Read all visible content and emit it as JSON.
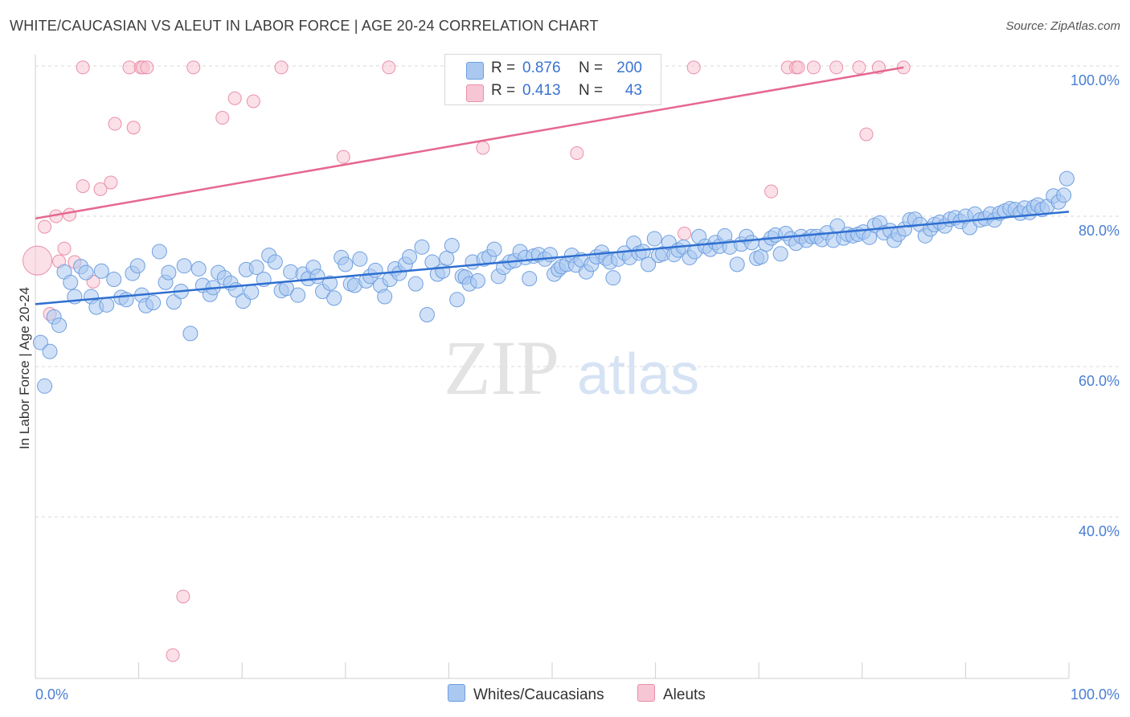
{
  "header": {
    "title": "WHITE/CAUCASIAN VS ALEUT IN LABOR FORCE | AGE 20-24 CORRELATION CHART",
    "source": "Source: ZipAtlas.com"
  },
  "legend": {
    "rows": [
      {
        "r_label": "R =",
        "r_value": "0.876",
        "n_label": "N =",
        "n_value": "200"
      },
      {
        "r_label": "R =",
        "r_value": "0.413",
        "n_label": "N =",
        "n_value": "43"
      }
    ]
  },
  "bottom_legend": {
    "series1": "Whites/Caucasians",
    "series2": "Aleuts"
  },
  "colors": {
    "blue_fill": "#aac8f0",
    "blue_stroke": "#6f9fe0",
    "blue_line": "#2f6fd0",
    "pink_fill": "#f7c6d4",
    "pink_stroke": "#ea8fab",
    "pink_line": "#e56890",
    "tick_text": "#4a7fd4",
    "grid": "#d8d8d8"
  },
  "chart_data": {
    "type": "scatter",
    "title": "WHITE/CAUCASIAN VS ALEUT IN LABOR FORCE | AGE 20-24 CORRELATION CHART",
    "xlabel": "",
    "ylabel": "In Labor Force | Age 20-24",
    "xlim": [
      0,
      100
    ],
    "ylim": [
      18.5,
      101.5
    ],
    "x_tick_labels": [
      "0.0%",
      "100.0%"
    ],
    "y_ticks": [
      {
        "value": 40,
        "label": "40.0%"
      },
      {
        "value": 60,
        "label": "60.0%"
      },
      {
        "value": 80,
        "label": "80.0%"
      },
      {
        "value": 100,
        "label": "100.0%"
      }
    ],
    "grid": "horizontal dashed",
    "watermark": "ZIPatlas",
    "series": [
      {
        "name": "Whites/Caucasians",
        "color": "#6f9fe0",
        "r": 0.876,
        "n": 200,
        "trend": {
          "x": [
            0,
            100
          ],
          "y": [
            68.3,
            80.6
          ]
        },
        "points": [
          [
            0.5,
            63.2
          ],
          [
            0.9,
            57.4
          ],
          [
            1.4,
            62.0
          ],
          [
            1.8,
            66.6
          ],
          [
            2.3,
            65.5
          ],
          [
            2.8,
            72.6
          ],
          [
            3.4,
            71.2
          ],
          [
            3.8,
            69.3
          ],
          [
            4.4,
            73.3
          ],
          [
            4.9,
            72.5
          ],
          [
            5.4,
            69.3
          ],
          [
            5.9,
            67.9
          ],
          [
            6.4,
            72.7
          ],
          [
            6.9,
            68.2
          ],
          [
            7.6,
            71.6
          ],
          [
            8.3,
            69.2
          ],
          [
            8.8,
            68.9
          ],
          [
            9.4,
            72.4
          ],
          [
            9.9,
            73.4
          ],
          [
            10.3,
            69.5
          ],
          [
            10.7,
            68.1
          ],
          [
            11.4,
            68.5
          ],
          [
            12.0,
            75.3
          ],
          [
            12.6,
            71.2
          ],
          [
            12.9,
            72.5
          ],
          [
            13.4,
            68.6
          ],
          [
            14.1,
            70.0
          ],
          [
            14.4,
            73.4
          ],
          [
            15.0,
            64.4
          ],
          [
            15.8,
            73.0
          ],
          [
            16.2,
            70.8
          ],
          [
            16.9,
            69.6
          ],
          [
            17.2,
            70.5
          ],
          [
            17.7,
            72.5
          ],
          [
            18.3,
            71.8
          ],
          [
            18.9,
            71.1
          ],
          [
            19.4,
            70.2
          ],
          [
            20.1,
            68.7
          ],
          [
            20.4,
            72.9
          ],
          [
            20.9,
            69.9
          ],
          [
            21.4,
            73.2
          ],
          [
            22.1,
            71.6
          ],
          [
            22.6,
            74.8
          ],
          [
            23.2,
            73.9
          ],
          [
            23.8,
            70.1
          ],
          [
            24.3,
            70.4
          ],
          [
            24.7,
            72.6
          ],
          [
            25.4,
            69.5
          ],
          [
            25.9,
            72.3
          ],
          [
            26.4,
            71.7
          ],
          [
            26.9,
            73.2
          ],
          [
            27.3,
            72.0
          ],
          [
            27.8,
            70.0
          ],
          [
            28.5,
            71.1
          ],
          [
            28.9,
            69.1
          ],
          [
            29.6,
            74.5
          ],
          [
            30.0,
            73.6
          ],
          [
            30.5,
            71.0
          ],
          [
            30.9,
            70.8
          ],
          [
            31.4,
            74.3
          ],
          [
            32.0,
            71.4
          ],
          [
            32.4,
            72.0
          ],
          [
            32.9,
            72.8
          ],
          [
            33.4,
            70.8
          ],
          [
            33.8,
            69.3
          ],
          [
            34.3,
            71.6
          ],
          [
            34.8,
            73.0
          ],
          [
            35.2,
            72.4
          ],
          [
            35.8,
            73.6
          ],
          [
            36.2,
            74.6
          ],
          [
            36.8,
            71.0
          ],
          [
            37.4,
            75.9
          ],
          [
            37.9,
            66.9
          ],
          [
            38.4,
            73.9
          ],
          [
            38.9,
            72.3
          ],
          [
            39.4,
            72.7
          ],
          [
            39.8,
            74.4
          ],
          [
            40.3,
            76.1
          ],
          [
            40.8,
            68.9
          ],
          [
            41.3,
            72.0
          ],
          [
            41.6,
            71.9
          ],
          [
            42.0,
            71.0
          ],
          [
            42.3,
            73.9
          ],
          [
            42.8,
            71.4
          ],
          [
            43.4,
            74.3
          ],
          [
            43.9,
            74.6
          ],
          [
            44.4,
            75.6
          ],
          [
            44.8,
            72.0
          ],
          [
            45.3,
            73.2
          ],
          [
            45.9,
            73.9
          ],
          [
            46.4,
            74.1
          ],
          [
            46.9,
            75.3
          ],
          [
            47.4,
            74.5
          ],
          [
            47.8,
            71.7
          ],
          [
            48.2,
            74.7
          ],
          [
            48.7,
            74.9
          ],
          [
            49.3,
            74.3
          ],
          [
            49.8,
            74.9
          ],
          [
            50.2,
            72.3
          ],
          [
            50.6,
            72.9
          ],
          [
            50.9,
            73.3
          ],
          [
            51.4,
            73.6
          ],
          [
            51.9,
            74.8
          ],
          [
            52.3,
            73.5
          ],
          [
            52.8,
            74.2
          ],
          [
            53.3,
            72.6
          ],
          [
            53.8,
            73.6
          ],
          [
            54.3,
            74.6
          ],
          [
            54.8,
            75.2
          ],
          [
            55.2,
            74.4
          ],
          [
            55.6,
            73.9
          ],
          [
            55.9,
            71.8
          ],
          [
            56.4,
            74.3
          ],
          [
            57.0,
            75.1
          ],
          [
            57.5,
            74.5
          ],
          [
            57.9,
            76.4
          ],
          [
            58.4,
            75.1
          ],
          [
            58.8,
            75.3
          ],
          [
            59.3,
            73.6
          ],
          [
            59.9,
            77.0
          ],
          [
            60.3,
            74.8
          ],
          [
            60.7,
            75.0
          ],
          [
            61.3,
            76.5
          ],
          [
            61.8,
            74.9
          ],
          [
            62.2,
            75.5
          ],
          [
            62.7,
            75.9
          ],
          [
            63.3,
            74.5
          ],
          [
            63.8,
            75.3
          ],
          [
            64.2,
            77.3
          ],
          [
            64.8,
            76.0
          ],
          [
            65.3,
            75.6
          ],
          [
            65.8,
            76.5
          ],
          [
            66.2,
            76.0
          ],
          [
            66.7,
            77.4
          ],
          [
            67.2,
            75.9
          ],
          [
            67.9,
            73.6
          ],
          [
            68.3,
            76.3
          ],
          [
            68.8,
            77.3
          ],
          [
            69.3,
            76.5
          ],
          [
            69.8,
            74.4
          ],
          [
            70.2,
            74.6
          ],
          [
            70.7,
            76.3
          ],
          [
            71.2,
            77.1
          ],
          [
            71.6,
            77.5
          ],
          [
            72.1,
            75.0
          ],
          [
            72.6,
            77.7
          ],
          [
            73.1,
            77.0
          ],
          [
            73.6,
            76.4
          ],
          [
            74.1,
            77.3
          ],
          [
            74.6,
            76.8
          ],
          [
            75.1,
            77.3
          ],
          [
            75.6,
            77.3
          ],
          [
            76.1,
            76.9
          ],
          [
            76.6,
            77.8
          ],
          [
            77.2,
            76.8
          ],
          [
            77.6,
            78.7
          ],
          [
            78.2,
            77.1
          ],
          [
            78.6,
            77.6
          ],
          [
            79.1,
            77.4
          ],
          [
            79.6,
            77.6
          ],
          [
            80.1,
            77.9
          ],
          [
            80.7,
            77.2
          ],
          [
            81.2,
            78.8
          ],
          [
            81.7,
            79.1
          ],
          [
            82.1,
            77.8
          ],
          [
            82.7,
            78.1
          ],
          [
            83.1,
            76.8
          ],
          [
            83.5,
            77.6
          ],
          [
            84.1,
            78.3
          ],
          [
            84.6,
            79.5
          ],
          [
            85.1,
            79.6
          ],
          [
            85.6,
            78.9
          ],
          [
            86.1,
            77.4
          ],
          [
            86.6,
            78.3
          ],
          [
            87.0,
            78.9
          ],
          [
            87.5,
            79.2
          ],
          [
            88.0,
            78.7
          ],
          [
            88.5,
            79.6
          ],
          [
            89.0,
            79.8
          ],
          [
            89.5,
            79.3
          ],
          [
            90.0,
            80.0
          ],
          [
            90.4,
            78.5
          ],
          [
            90.9,
            80.3
          ],
          [
            91.4,
            79.5
          ],
          [
            91.9,
            79.7
          ],
          [
            92.4,
            80.3
          ],
          [
            92.8,
            79.5
          ],
          [
            93.3,
            80.4
          ],
          [
            93.8,
            80.7
          ],
          [
            94.3,
            81.0
          ],
          [
            94.8,
            80.9
          ],
          [
            95.3,
            80.4
          ],
          [
            95.7,
            81.1
          ],
          [
            96.2,
            80.5
          ],
          [
            96.6,
            81.2
          ],
          [
            97.0,
            81.5
          ],
          [
            97.4,
            80.9
          ],
          [
            97.9,
            81.3
          ],
          [
            98.5,
            82.7
          ],
          [
            99.0,
            81.9
          ],
          [
            99.5,
            82.8
          ],
          [
            99.8,
            85.0
          ]
        ]
      },
      {
        "name": "Aleuts",
        "color": "#ea8fab",
        "r": 0.413,
        "n": 43,
        "trend": {
          "x": [
            0,
            84.0
          ],
          "y": [
            79.7,
            99.8
          ]
        },
        "points": [
          [
            0.2,
            74.1
          ],
          [
            0.9,
            78.6
          ],
          [
            1.4,
            67.0
          ],
          [
            2.0,
            80.0
          ],
          [
            2.3,
            74.0
          ],
          [
            2.8,
            75.7
          ],
          [
            3.3,
            80.2
          ],
          [
            3.8,
            73.9
          ],
          [
            4.6,
            84.0
          ],
          [
            4.6,
            99.8
          ],
          [
            5.6,
            71.3
          ],
          [
            6.3,
            83.6
          ],
          [
            7.3,
            84.5
          ],
          [
            7.7,
            92.3
          ],
          [
            9.1,
            99.8
          ],
          [
            9.5,
            91.8
          ],
          [
            10.2,
            99.8
          ],
          [
            10.4,
            99.8
          ],
          [
            10.8,
            99.8
          ],
          [
            13.3,
            21.6
          ],
          [
            14.3,
            29.4
          ],
          [
            15.3,
            99.8
          ],
          [
            18.1,
            93.1
          ],
          [
            19.3,
            95.7
          ],
          [
            21.1,
            95.3
          ],
          [
            23.8,
            99.8
          ],
          [
            29.8,
            87.9
          ],
          [
            34.2,
            99.8
          ],
          [
            43.3,
            89.1
          ],
          [
            47.1,
            99.8
          ],
          [
            52.4,
            88.4
          ],
          [
            62.8,
            77.7
          ],
          [
            63.7,
            99.8
          ],
          [
            71.2,
            83.3
          ],
          [
            72.8,
            99.8
          ],
          [
            73.6,
            99.8
          ],
          [
            73.8,
            99.8
          ],
          [
            75.3,
            99.8
          ],
          [
            77.5,
            99.8
          ],
          [
            79.7,
            99.8
          ],
          [
            80.4,
            90.9
          ],
          [
            81.6,
            99.8
          ],
          [
            84.0,
            99.8
          ]
        ]
      }
    ]
  }
}
